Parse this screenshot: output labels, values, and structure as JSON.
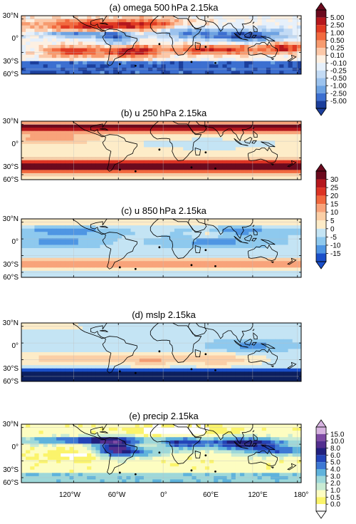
{
  "figure": {
    "panels": [
      {
        "title": "(a) omega 500 hPa 2.15ka",
        "field": "omega"
      },
      {
        "title": "(b) u 250 hPa 2.15ka",
        "field": "u250"
      },
      {
        "title": "(c) u 850 hPa 2.15ka",
        "field": "u850"
      },
      {
        "title": "(d) mslp 2.15ka",
        "field": "mslp"
      },
      {
        "title": "(e) precip 2.15ka",
        "field": "precip"
      }
    ],
    "lat_labels": [
      "30°N",
      "0°",
      "30°S",
      "60°S"
    ],
    "lon_labels": [
      "120°W",
      "60°W",
      "0°",
      "60°E",
      "120°E",
      "180°"
    ],
    "colorbars": {
      "omega": {
        "labels": [
          "5.00",
          "2.50",
          "1.00",
          "0.50",
          "0.25",
          "0.10",
          "-0.10",
          "-0.25",
          "-0.50",
          "-1.00",
          "-2.50",
          "-5.00"
        ],
        "colors": [
          "#6b0a1e",
          "#b5171d",
          "#e03a22",
          "#f26a3f",
          "#f79b6f",
          "#fcc8a8",
          "#fdf0e2",
          "#e6f0fb",
          "#c3dbf5",
          "#9cc3ee",
          "#6ea3e2",
          "#3c6fd0",
          "#1c3f9c"
        ]
      },
      "u": {
        "labels": [
          "30",
          "25",
          "20",
          "15",
          "10",
          "5",
          "0",
          "-5",
          "-10",
          "-15"
        ],
        "colors": [
          "#6b0a1e",
          "#b5171d",
          "#dc3323",
          "#f1683e",
          "#f8a37a",
          "#fbcfa6",
          "#fdecc8",
          "#c4e4f4",
          "#8ec9ee",
          "#4f96e3",
          "#1a4fc9"
        ]
      },
      "precip": {
        "labels": [
          "15.0",
          "10.0",
          "8.0",
          "6.0",
          "5.0",
          "4.0",
          "3.0",
          "2.0",
          "1.0",
          "0.5",
          "0.0"
        ],
        "colors": [
          "#d6b3e0",
          "#7d4aa3",
          "#532f8f",
          "#21207e",
          "#2344b8",
          "#3d78d4",
          "#5fb3dc",
          "#9ed8d9",
          "#c9ebd3",
          "#fdfdc1",
          "#fbf46b",
          "#ffffff"
        ]
      }
    }
  }
}
